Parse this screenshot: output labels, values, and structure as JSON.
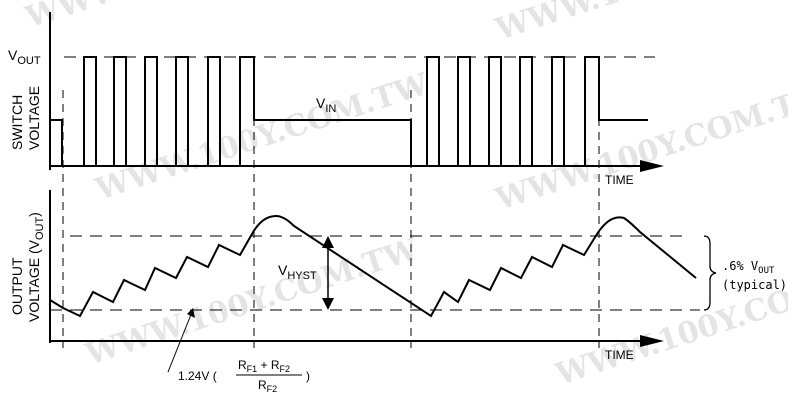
{
  "watermark": "WWW.100Y.COM.TW",
  "top_panel": {
    "y_label_line1": "SWITCH",
    "y_label_line2": "VOLTAGE",
    "vout_main": "V",
    "vout_sub": "OUT",
    "vin_main": "V",
    "vin_sub": "IN",
    "x_label": "TIME"
  },
  "bottom_panel": {
    "y_label_line1": "OUTPUT",
    "y_label_line2": "VOLTAGE (V",
    "y_label_sub": "OUT",
    "y_label_close": ")",
    "vhyst_main": "V",
    "vhyst_sub": "HYST",
    "x_label": "TIME"
  },
  "formula": {
    "prefix": "1.24V (",
    "num_r1": "R",
    "num_r1_sub": "F1",
    "plus": " + ",
    "num_r2": "R",
    "num_r2_sub": "F2",
    "den_r": "R",
    "den_r_sub": "F2",
    "suffix": ")"
  },
  "annotation": {
    "pct": ".6%",
    "vout_main": "V",
    "vout_sub": "OUT",
    "typical": "(typical)"
  }
}
